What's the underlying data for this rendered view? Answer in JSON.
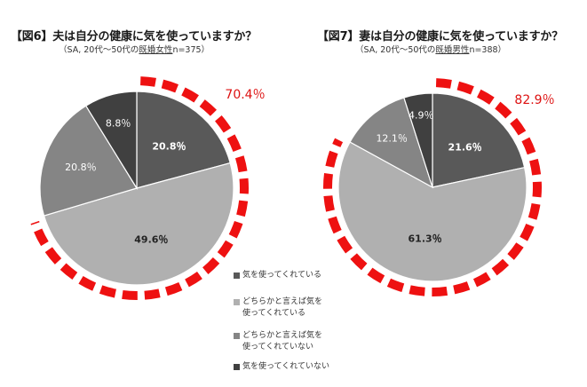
{
  "figures": [
    {
      "title": "【図6】夫は自分の健康に気を使っていますか？",
      "subtitle_pre": "（SA, 20代～50代の",
      "subtitle_underlined": "既婚女性",
      "subtitle_post": "n=375）",
      "highlight_label": "70.4％"
    },
    {
      "title": "【図7】妻は自分の健康に気を使っていますか？",
      "subtitle_pre": "（SA, 20代～50代の",
      "subtitle_underlined": "既婚男性",
      "subtitle_post": "n=388）",
      "highlight_label": "82.9％"
    }
  ],
  "legend": {
    "items": [
      {
        "label": "気を使ってくれている",
        "color": "#595959"
      },
      {
        "label": "どちらかと言えば気を\n使ってくれている",
        "color": "#b0b0b0"
      },
      {
        "label": "どちらかと言えば気を\n使ってくれていない",
        "color": "#858585"
      },
      {
        "label": "気を使ってくれていない",
        "color": "#404040"
      }
    ]
  },
  "colors": {
    "dash_ring": "#ee1111",
    "highlight_text": "#dd1111",
    "slice_border": "#ffffff"
  },
  "chart_data": [
    {
      "type": "pie",
      "title": "【図6】夫は自分の健康に気を使っていますか？",
      "categories": [
        "気を使ってくれている",
        "どちらかと言えば気を使ってくれている",
        "どちらかと言えば気を使ってくれていない",
        "気を使ってくれていない"
      ],
      "values": [
        20.8,
        49.6,
        20.8,
        8.8
      ],
      "labels": [
        "20.8％",
        "49.6％",
        "20.8％",
        "8.8％"
      ],
      "highlight_total": 70.4
    },
    {
      "type": "pie",
      "title": "【図7】妻は自分の健康に気を使っていますか？",
      "categories": [
        "気を使ってくれている",
        "どちらかと言えば気を使ってくれている",
        "どちらかと言えば気を使ってくれていない",
        "気を使ってくれていない"
      ],
      "values": [
        21.6,
        61.3,
        12.1,
        4.9
      ],
      "labels": [
        "21.6％",
        "61.3％",
        "12.1％",
        "4.9％"
      ],
      "highlight_total": 82.9
    }
  ]
}
